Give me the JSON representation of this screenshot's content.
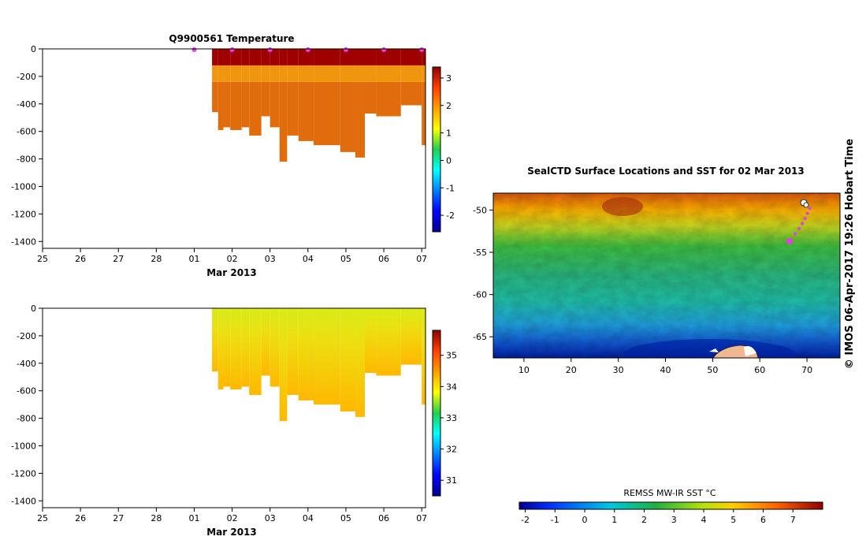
{
  "chart_data": [
    {
      "type": "heatmap",
      "name": "temperature-section",
      "title": "Q9900561  Temperature",
      "xlabel": "Mar 2013",
      "x_tick_labels": [
        "25",
        "26",
        "27",
        "28",
        "01",
        "02",
        "03",
        "04",
        "05",
        "06",
        "07"
      ],
      "x_range_days": [
        0,
        10.1
      ],
      "y_tick_labels": [
        "0",
        "-200",
        "-400",
        "-600",
        "-800",
        "-1000",
        "-1200",
        "-1400"
      ],
      "y_ticks": [
        0,
        -200,
        -400,
        -600,
        -800,
        -1000,
        -1200,
        -1400
      ],
      "ylim": [
        -1450,
        0
      ],
      "colorbar": {
        "ticks": [
          "3",
          "2",
          "1",
          "0",
          "-1",
          "-2"
        ],
        "min": -2.6,
        "max": 3.4
      },
      "surface_markers_days": [
        4.0,
        5.0,
        6.0,
        7.0,
        8.0,
        9.0,
        10.0
      ],
      "profiles": [
        {
          "t0": 4.47,
          "t1": 4.63,
          "depth": -460
        },
        {
          "t0": 4.63,
          "t1": 4.77,
          "depth": -590
        },
        {
          "t0": 4.77,
          "t1": 4.95,
          "depth": -570
        },
        {
          "t0": 4.95,
          "t1": 5.25,
          "depth": -590
        },
        {
          "t0": 5.25,
          "t1": 5.45,
          "depth": -570
        },
        {
          "t0": 5.45,
          "t1": 5.77,
          "depth": -630
        },
        {
          "t0": 5.77,
          "t1": 6.0,
          "depth": -490
        },
        {
          "t0": 6.0,
          "t1": 6.25,
          "depth": -570
        },
        {
          "t0": 6.25,
          "t1": 6.45,
          "depth": -820
        },
        {
          "t0": 6.45,
          "t1": 6.75,
          "depth": -630
        },
        {
          "t0": 6.75,
          "t1": 7.15,
          "depth": -670
        },
        {
          "t0": 7.15,
          "t1": 7.85,
          "depth": -700
        },
        {
          "t0": 7.85,
          "t1": 8.25,
          "depth": -750
        },
        {
          "t0": 8.25,
          "t1": 8.5,
          "depth": -790
        },
        {
          "t0": 8.5,
          "t1": 8.8,
          "depth": -470
        },
        {
          "t0": 8.8,
          "t1": 9.45,
          "depth": -490
        },
        {
          "t0": 9.45,
          "t1": 10.0,
          "depth": -410
        },
        {
          "t0": 10.0,
          "t1": 10.1,
          "depth": -700
        }
      ]
    },
    {
      "type": "heatmap",
      "name": "salinity-section",
      "title": "",
      "xlabel": "Mar 2013",
      "x_tick_labels": [
        "25",
        "26",
        "27",
        "28",
        "01",
        "02",
        "03",
        "04",
        "05",
        "06",
        "07"
      ],
      "x_range_days": [
        0,
        10.1
      ],
      "y_tick_labels": [
        "0",
        "-200",
        "-400",
        "-600",
        "-800",
        "-1000",
        "-1200",
        "-1400"
      ],
      "y_ticks": [
        0,
        -200,
        -400,
        -600,
        -800,
        -1000,
        -1200,
        -1400
      ],
      "ylim": [
        -1450,
        0
      ],
      "colorbar": {
        "ticks": [
          "35",
          "34",
          "33",
          "32",
          "31"
        ],
        "min": 30.5,
        "max": 35.8
      }
    },
    {
      "type": "heatmap",
      "name": "sst-map",
      "title": "SealCTD Surface Locations and SST for 02 Mar 2013",
      "x_tick_labels": [
        "10",
        "20",
        "30",
        "40",
        "50",
        "60",
        "70"
      ],
      "x_ticks": [
        10,
        20,
        30,
        40,
        50,
        60,
        70
      ],
      "xlim": [
        3.5,
        77
      ],
      "y_tick_labels": [
        "-50",
        "-55",
        "-60",
        "-65"
      ],
      "y_ticks": [
        -50,
        -55,
        -60,
        -65
      ],
      "ylim": [
        -67.5,
        -48
      ],
      "track_lon_lat": [
        [
          66.3,
          -53.7
        ],
        [
          67.5,
          -52.8
        ],
        [
          68.3,
          -52.2
        ],
        [
          69.0,
          -51.6
        ],
        [
          69.6,
          -51.0
        ],
        [
          70.1,
          -50.4
        ],
        [
          70.6,
          -49.8
        ]
      ],
      "current_position": [
        66.3,
        -53.7
      ],
      "colorbar": {
        "label": "REMSS MW-IR SST °C",
        "ticks": [
          "-2",
          "-1",
          "0",
          "1",
          "2",
          "3",
          "4",
          "5",
          "6",
          "7"
        ],
        "min": -2.2,
        "max": 8.0
      }
    }
  ],
  "watermark": "© IMOS 06-Apr-2017 19:26 Hobart Time",
  "colors": {
    "deep_red": "#a00000",
    "warm_orange": "#e87010",
    "yellow": "#e8e020",
    "land": "#f0b890"
  }
}
